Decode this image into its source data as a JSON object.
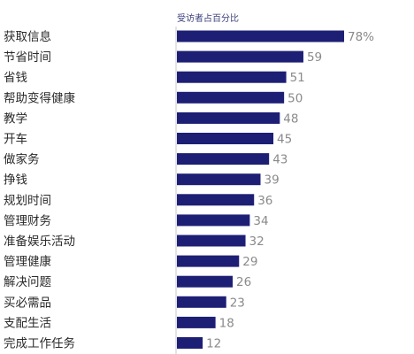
{
  "chart_data": {
    "type": "bar",
    "orientation": "horizontal",
    "title": "受访者占百分比",
    "categories": [
      "获取信息",
      "节省时间",
      "省钱",
      "帮助变得健康",
      "教学",
      "开车",
      "做家务",
      "挣钱",
      "规划时间",
      "管理财务",
      "准备娱乐活动",
      "管理健康",
      "解决问题",
      "买必需品",
      "支配生活",
      "完成工作任务"
    ],
    "values": [
      78,
      59,
      51,
      50,
      48,
      45,
      43,
      39,
      36,
      34,
      32,
      29,
      26,
      23,
      18,
      12
    ],
    "value_labels": [
      "78%",
      "59",
      "51",
      "50",
      "48",
      "45",
      "43",
      "39",
      "36",
      "34",
      "32",
      "29",
      "26",
      "23",
      "18",
      "12"
    ],
    "xlim": [
      0,
      100
    ],
    "grid": false,
    "bar_color": "#1d1f75",
    "axis_color": "#c8c8c8"
  }
}
